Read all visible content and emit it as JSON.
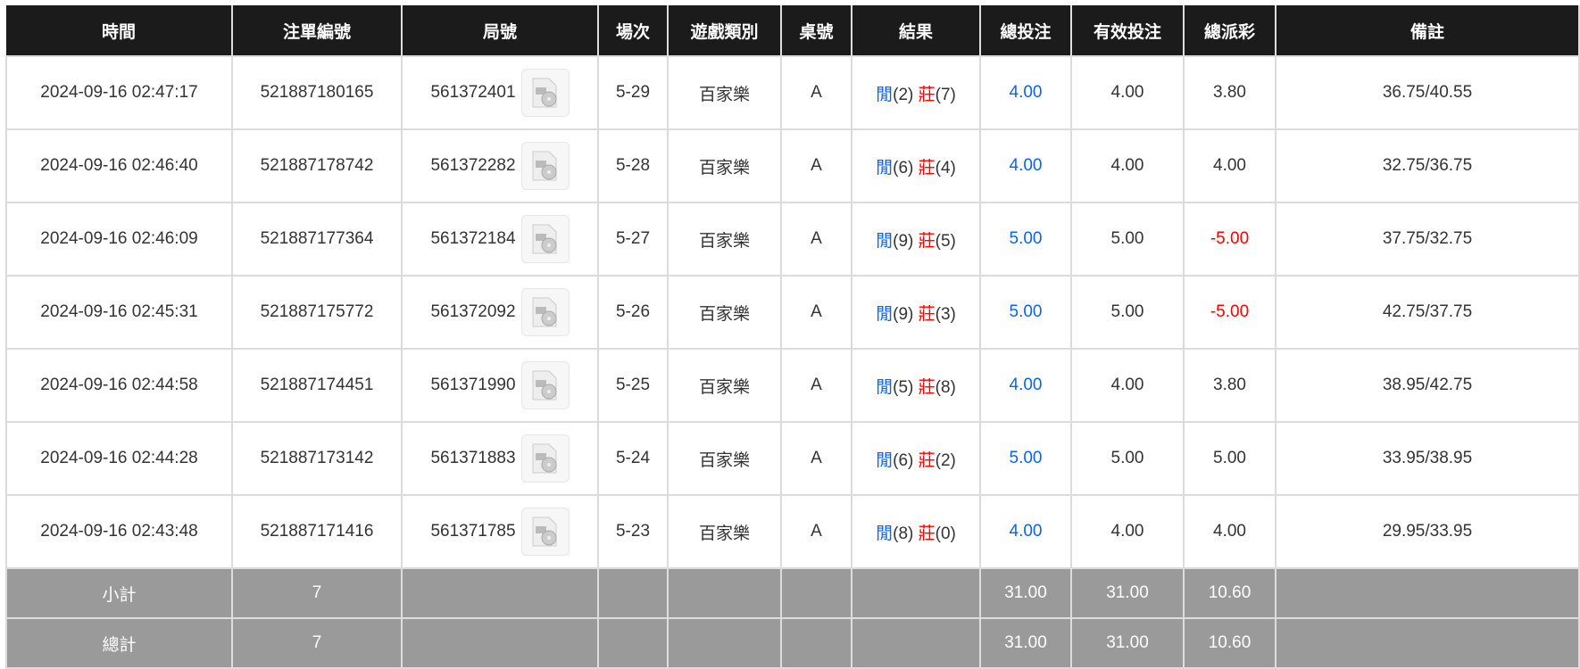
{
  "headers": [
    "時間",
    "注單編號",
    "局號",
    "場次",
    "遊戲類別",
    "桌號",
    "結果",
    "總投注",
    "有效投注",
    "總派彩",
    "備註"
  ],
  "rows": [
    {
      "time": "2024-09-16 02:47:17",
      "bet_id": "521887180165",
      "round": "561372401",
      "shoe": "5-29",
      "game": "百家樂",
      "table": "A",
      "player_label": "閒",
      "player": "(2)",
      "banker_label": "莊",
      "banker": "(7)",
      "bet": "4.00",
      "valid": "4.00",
      "payout": "3.80",
      "note": "36.75/40.55"
    },
    {
      "time": "2024-09-16 02:46:40",
      "bet_id": "521887178742",
      "round": "561372282",
      "shoe": "5-28",
      "game": "百家樂",
      "table": "A",
      "player_label": "閒",
      "player": "(6)",
      "banker_label": "莊",
      "banker": "(4)",
      "bet": "4.00",
      "valid": "4.00",
      "payout": "4.00",
      "note": "32.75/36.75"
    },
    {
      "time": "2024-09-16 02:46:09",
      "bet_id": "521887177364",
      "round": "561372184",
      "shoe": "5-27",
      "game": "百家樂",
      "table": "A",
      "player_label": "閒",
      "player": "(9)",
      "banker_label": "莊",
      "banker": "(5)",
      "bet": "5.00",
      "valid": "5.00",
      "payout": "-5.00",
      "note": "37.75/32.75"
    },
    {
      "time": "2024-09-16 02:45:31",
      "bet_id": "521887175772",
      "round": "561372092",
      "shoe": "5-26",
      "game": "百家樂",
      "table": "A",
      "player_label": "閒",
      "player": "(9)",
      "banker_label": "莊",
      "banker": "(3)",
      "bet": "5.00",
      "valid": "5.00",
      "payout": "-5.00",
      "note": "42.75/37.75"
    },
    {
      "time": "2024-09-16 02:44:58",
      "bet_id": "521887174451",
      "round": "561371990",
      "shoe": "5-25",
      "game": "百家樂",
      "table": "A",
      "player_label": "閒",
      "player": "(5)",
      "banker_label": "莊",
      "banker": "(8)",
      "bet": "4.00",
      "valid": "4.00",
      "payout": "3.80",
      "note": "38.95/42.75"
    },
    {
      "time": "2024-09-16 02:44:28",
      "bet_id": "521887173142",
      "round": "561371883",
      "shoe": "5-24",
      "game": "百家樂",
      "table": "A",
      "player_label": "閒",
      "player": "(6)",
      "banker_label": "莊",
      "banker": "(2)",
      "bet": "5.00",
      "valid": "5.00",
      "payout": "5.00",
      "note": "33.95/38.95"
    },
    {
      "time": "2024-09-16 02:43:48",
      "bet_id": "521887171416",
      "round": "561371785",
      "shoe": "5-23",
      "game": "百家樂",
      "table": "A",
      "player_label": "閒",
      "player": "(8)",
      "banker_label": "莊",
      "banker": "(0)",
      "bet": "4.00",
      "valid": "4.00",
      "payout": "4.00",
      "note": "29.95/33.95"
    }
  ],
  "subtotal": {
    "label": "小計",
    "count": "7",
    "bet": "31.00",
    "valid": "31.00",
    "payout": "10.60"
  },
  "total": {
    "label": "總計",
    "count": "7",
    "bet": "31.00",
    "valid": "31.00",
    "payout": "10.60"
  },
  "colors": {
    "header_bg": "#1b1b1b",
    "player": "#0a64f0",
    "banker": "#ff0000",
    "negative": "#ff0000",
    "summary_bg": "#9a9a9a"
  }
}
